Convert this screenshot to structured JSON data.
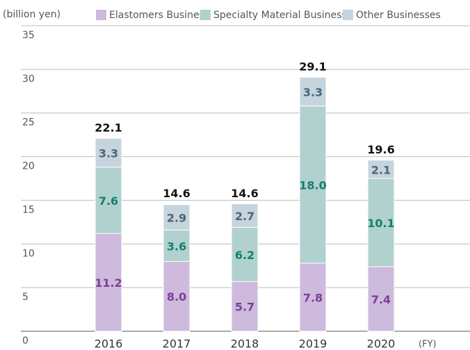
{
  "chart_data": {
    "type": "stacked-bar",
    "y_label": "(billion yen)",
    "x_label": "(FY)",
    "categories": [
      "2016",
      "2017",
      "2018",
      "2019",
      "2020"
    ],
    "series": [
      {
        "name": "Elastomers Business",
        "color": "#cdbadc",
        "label_color": "#7b3f98",
        "values": [
          11.2,
          8.0,
          5.7,
          7.8,
          7.4
        ],
        "value_labels": [
          "11.2",
          "8.0",
          "5.7",
          "7.8",
          "7.4"
        ]
      },
      {
        "name": "Specialty Material Business",
        "color": "#b1d1ce",
        "label_color": "#137f70",
        "values": [
          7.6,
          3.6,
          6.2,
          18.0,
          10.1
        ],
        "value_labels": [
          "7.6",
          "3.6",
          "6.2",
          "18.0",
          "10.1"
        ]
      },
      {
        "name": "Other Businesses",
        "color": "#c6d4dd",
        "label_color": "#4b6579",
        "values": [
          3.3,
          2.9,
          2.7,
          3.3,
          2.1
        ],
        "value_labels": [
          "3.3",
          "2.9",
          "2.7",
          "3.3",
          "2.1"
        ]
      }
    ],
    "totals": [
      22.1,
      14.6,
      14.6,
      29.1,
      19.6
    ],
    "total_labels": [
      "22.1",
      "14.6",
      "14.6",
      "29.1",
      "19.6"
    ],
    "ylim": [
      0,
      35
    ],
    "yticks": [
      0,
      5,
      10,
      15,
      20,
      25,
      30,
      35
    ],
    "grid": true
  }
}
